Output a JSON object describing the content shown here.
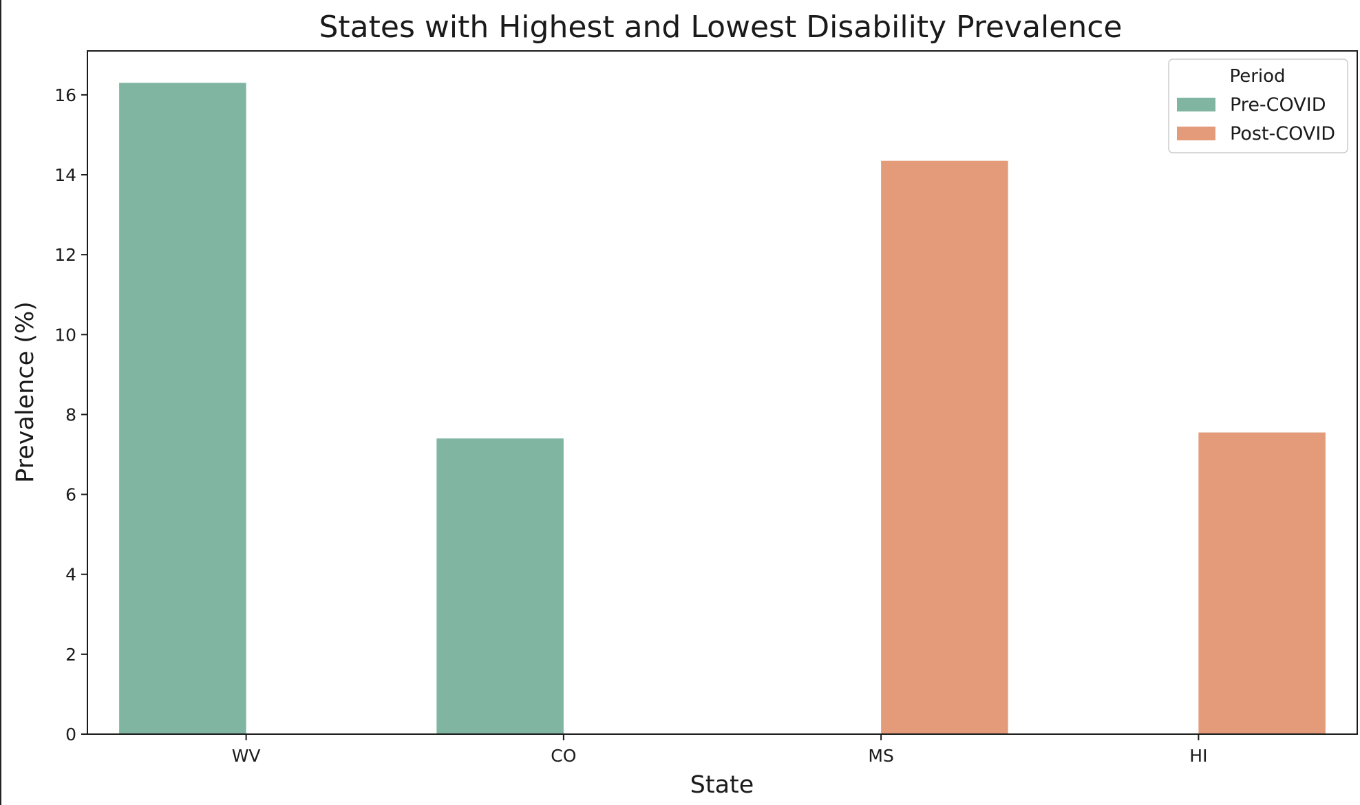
{
  "chart_data": {
    "type": "bar",
    "title": "States with Highest and Lowest Disability Prevalence",
    "xlabel": "State",
    "ylabel": "Prevalence (%)",
    "categories": [
      "WV",
      "CO",
      "MS",
      "HI"
    ],
    "series": [
      {
        "name": "Pre-COVID",
        "color": "#7fb5a1",
        "values": [
          16.3,
          7.4,
          null,
          null
        ]
      },
      {
        "name": "Post-COVID",
        "color": "#e39b7a",
        "values": [
          null,
          null,
          14.35,
          7.55
        ]
      }
    ],
    "ylim": [
      0,
      17.1
    ],
    "yticks": [
      0,
      2,
      4,
      6,
      8,
      10,
      12,
      14,
      16
    ],
    "legend": {
      "title": "Period",
      "position": "top-right"
    },
    "grid": false
  }
}
